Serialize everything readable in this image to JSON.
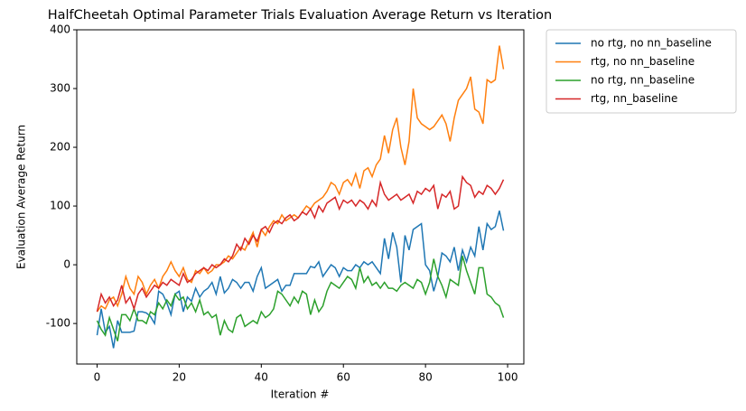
{
  "chart_data": {
    "type": "line",
    "title": "HalfCheetah Optimal Parameter Trials Evaluation Average Return vs Iteration",
    "x_label": "Iteration #",
    "y_label": "Evaluation Average Return",
    "x": [
      0,
      1,
      2,
      3,
      4,
      5,
      6,
      7,
      8,
      9,
      10,
      11,
      12,
      13,
      14,
      15,
      16,
      17,
      18,
      19,
      20,
      21,
      22,
      23,
      24,
      25,
      26,
      27,
      28,
      29,
      30,
      31,
      32,
      33,
      34,
      35,
      36,
      37,
      38,
      39,
      40,
      41,
      42,
      43,
      44,
      45,
      46,
      47,
      48,
      49,
      50,
      51,
      52,
      53,
      54,
      55,
      56,
      57,
      58,
      59,
      60,
      61,
      62,
      63,
      64,
      65,
      66,
      67,
      68,
      69,
      70,
      71,
      72,
      73,
      74,
      75,
      76,
      77,
      78,
      79,
      80,
      81,
      82,
      83,
      84,
      85,
      86,
      87,
      88,
      89,
      90,
      91,
      92,
      93,
      94,
      95,
      96,
      97,
      98,
      99
    ],
    "series": [
      {
        "name": "no rtg, no nn_baseline",
        "color": "#1f77b4",
        "values": [
          -120,
          -75,
          -115,
          -105,
          -142,
          -95,
          -115,
          -115,
          -115,
          -113,
          -80,
          -80,
          -82,
          -88,
          -100,
          -45,
          -50,
          -65,
          -85,
          -50,
          -45,
          -80,
          -55,
          -62,
          -40,
          -55,
          -45,
          -40,
          -30,
          -50,
          -20,
          -48,
          -40,
          -25,
          -30,
          -40,
          -30,
          -30,
          -45,
          -20,
          -5,
          -40,
          -35,
          -30,
          -25,
          -45,
          -35,
          -35,
          -15,
          -15,
          -15,
          -15,
          -3,
          -5,
          5,
          -20,
          -10,
          0,
          -5,
          -20,
          -5,
          -10,
          -10,
          0,
          -5,
          5,
          0,
          5,
          -5,
          -15,
          45,
          10,
          55,
          30,
          -30,
          50,
          25,
          60,
          65,
          70,
          0,
          -10,
          -45,
          -20,
          20,
          15,
          5,
          30,
          -10,
          25,
          5,
          30,
          15,
          65,
          25,
          70,
          60,
          65,
          92,
          58
        ]
      },
      {
        "name": "rtg, no nn_baseline",
        "color": "#ff7f0e",
        "values": [
          -80,
          -70,
          -75,
          -60,
          -55,
          -70,
          -50,
          -20,
          -40,
          -50,
          -20,
          -30,
          -50,
          -35,
          -25,
          -40,
          -20,
          -10,
          5,
          -10,
          -20,
          -5,
          -25,
          -30,
          -10,
          -15,
          -5,
          -15,
          -10,
          0,
          0,
          5,
          15,
          10,
          20,
          30,
          25,
          40,
          55,
          30,
          60,
          50,
          65,
          75,
          70,
          85,
          75,
          80,
          85,
          80,
          90,
          100,
          95,
          105,
          110,
          115,
          125,
          140,
          135,
          120,
          140,
          145,
          135,
          155,
          130,
          160,
          165,
          150,
          170,
          180,
          220,
          190,
          230,
          250,
          200,
          170,
          210,
          300,
          250,
          240,
          235,
          230,
          235,
          245,
          255,
          240,
          210,
          250,
          280,
          290,
          300,
          320,
          265,
          260,
          240,
          315,
          310,
          315,
          373,
          333
        ]
      },
      {
        "name": "no rtg, nn_baseline",
        "color": "#2ca02c",
        "values": [
          -95,
          -110,
          -120,
          -90,
          -110,
          -130,
          -85,
          -85,
          -95,
          -75,
          -95,
          -95,
          -100,
          -80,
          -85,
          -65,
          -75,
          -60,
          -70,
          -50,
          -60,
          -55,
          -75,
          -65,
          -80,
          -60,
          -85,
          -80,
          -90,
          -85,
          -120,
          -95,
          -110,
          -115,
          -90,
          -85,
          -105,
          -100,
          -95,
          -100,
          -80,
          -90,
          -85,
          -75,
          -45,
          -50,
          -60,
          -70,
          -55,
          -65,
          -45,
          -50,
          -85,
          -60,
          -80,
          -70,
          -45,
          -30,
          -35,
          -40,
          -30,
          -20,
          -25,
          -40,
          -5,
          -30,
          -20,
          -35,
          -30,
          -40,
          -30,
          -40,
          -40,
          -45,
          -35,
          -30,
          -35,
          -40,
          -25,
          -30,
          -50,
          -30,
          10,
          -20,
          -35,
          -55,
          -25,
          -30,
          -35,
          15,
          -10,
          -30,
          -50,
          -5,
          -5,
          -50,
          -55,
          -65,
          -70,
          -90
        ]
      },
      {
        "name": "rtg, nn_baseline",
        "color": "#d62728",
        "values": [
          -80,
          -50,
          -65,
          -55,
          -70,
          -60,
          -35,
          -65,
          -55,
          -75,
          -50,
          -40,
          -55,
          -45,
          -35,
          -40,
          -30,
          -35,
          -25,
          -30,
          -35,
          -15,
          -30,
          -25,
          -15,
          -10,
          -5,
          -10,
          0,
          -5,
          0,
          10,
          5,
          15,
          35,
          25,
          45,
          35,
          50,
          40,
          60,
          65,
          55,
          70,
          75,
          70,
          80,
          85,
          75,
          80,
          90,
          85,
          95,
          80,
          100,
          90,
          105,
          110,
          115,
          95,
          110,
          105,
          110,
          100,
          110,
          105,
          95,
          110,
          100,
          140,
          120,
          110,
          115,
          120,
          110,
          115,
          120,
          105,
          125,
          120,
          130,
          125,
          135,
          95,
          120,
          115,
          125,
          95,
          100,
          150,
          140,
          135,
          115,
          125,
          120,
          135,
          130,
          120,
          130,
          145
        ]
      }
    ],
    "xlim": [
      -4.95,
      103.95
    ],
    "ylim": [
      -169,
      400
    ],
    "xticks": [
      0,
      20,
      40,
      60,
      80,
      100
    ],
    "yticks": [
      -100,
      0,
      100,
      200,
      300,
      400
    ],
    "grid": false,
    "legend": "outside"
  }
}
